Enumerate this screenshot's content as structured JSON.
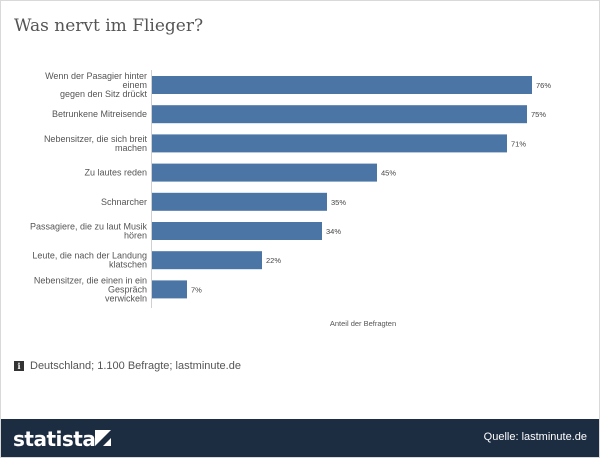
{
  "title": "Was nervt im Flieger?",
  "chart_data": {
    "type": "bar",
    "orientation": "horizontal",
    "categories": [
      [
        "Wenn der Pasagier hinter",
        "einem",
        "gegen den Sitz drückt"
      ],
      [
        "Betrunkene Mitreisende"
      ],
      [
        "Nebensitzer, die sich breit",
        "machen"
      ],
      [
        "Zu lautes reden"
      ],
      [
        "Schnarcher"
      ],
      [
        "Passagiere, die zu laut Musik",
        "hören"
      ],
      [
        "Leute, die nach der Landung",
        "klatschen"
      ],
      [
        "Nebensitzer, die einen in ein",
        "Gespräch",
        "verwickeln"
      ]
    ],
    "values": [
      76,
      75,
      71,
      45,
      35,
      34,
      22,
      7
    ],
    "value_labels": [
      "76%",
      "75%",
      "71%",
      "45%",
      "35%",
      "34%",
      "22%",
      "7%"
    ],
    "xlabel": "Anteil der Befragten",
    "ylabel": "",
    "xlim": [
      0,
      80
    ],
    "bar_color": "#4a75a5"
  },
  "note": {
    "icon": "info-icon",
    "icon_glyph": "i",
    "text": "Deutschland; 1.100 Befragte; lastminute.de"
  },
  "footer": {
    "logo_text": "statista",
    "source": "Quelle: lastminute.de",
    "background": "#1c2d42"
  }
}
